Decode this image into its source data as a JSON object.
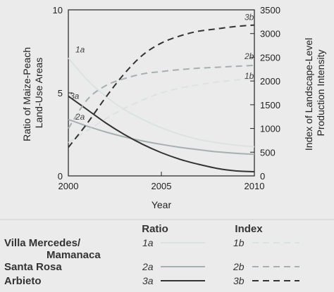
{
  "chart_data": {
    "type": "line",
    "x_axis": {
      "label": "Year",
      "range": [
        2000,
        2010
      ],
      "ticks": [
        "2000",
        "2005",
        "2010"
      ]
    },
    "y_left": {
      "label_lines": [
        "Ratio of Maize-Peach",
        "Land-Use Areas"
      ],
      "range": [
        0,
        10
      ],
      "ticks": [
        "0",
        "5",
        "10"
      ]
    },
    "y_right": {
      "label_lines": [
        "Index of Landscape-Level",
        "Production Intensity"
      ],
      "range": [
        0,
        3500
      ],
      "ticks": [
        "0",
        "500",
        "1000",
        "1500",
        "2000",
        "2500",
        "3000",
        "3500"
      ]
    },
    "series": [
      {
        "id": "1a",
        "label": "1a",
        "axis": "left",
        "style": "solid",
        "color": "#dbe2e2",
        "x": [
          2000,
          2001,
          2002,
          2003,
          2004,
          2005,
          2006,
          2007,
          2008,
          2009,
          2010
        ],
        "y": [
          7.1,
          5.8,
          4.8,
          4.0,
          3.4,
          2.9,
          2.5,
          2.2,
          2.0,
          1.85,
          1.75
        ]
      },
      {
        "id": "2a",
        "label": "2a",
        "axis": "left",
        "style": "solid",
        "color": "#a7b0b0",
        "x": [
          2000,
          2001,
          2002,
          2003,
          2004,
          2005,
          2006,
          2007,
          2008,
          2009,
          2010
        ],
        "y": [
          3.4,
          3.0,
          2.65,
          2.35,
          2.1,
          1.9,
          1.72,
          1.58,
          1.45,
          1.36,
          1.3
        ]
      },
      {
        "id": "3a",
        "label": "3a",
        "axis": "left",
        "style": "solid",
        "color": "#333333",
        "x": [
          2000,
          2001,
          2002,
          2003,
          2004,
          2005,
          2006,
          2007,
          2008,
          2009,
          2010
        ],
        "y": [
          4.8,
          4.0,
          3.2,
          2.5,
          1.9,
          1.4,
          1.0,
          0.7,
          0.45,
          0.3,
          0.25
        ]
      },
      {
        "id": "1b",
        "label": "1b",
        "axis": "right",
        "style": "dashed",
        "color": "#dbe2e2",
        "x": [
          2000,
          2001,
          2002,
          2003,
          2004,
          2005,
          2006,
          2007,
          2008,
          2009,
          2010
        ],
        "y": [
          700,
          950,
          1200,
          1420,
          1600,
          1750,
          1850,
          1920,
          1980,
          2020,
          2050
        ]
      },
      {
        "id": "2b",
        "label": "2b",
        "axis": "right",
        "style": "dashed",
        "color": "#a7b0b0",
        "x": [
          2000,
          2001,
          2002,
          2003,
          2004,
          2005,
          2006,
          2007,
          2008,
          2009,
          2010
        ],
        "y": [
          1000,
          1600,
          1900,
          2050,
          2150,
          2200,
          2240,
          2270,
          2290,
          2310,
          2330
        ]
      },
      {
        "id": "3b",
        "label": "3b",
        "axis": "right",
        "style": "dashed",
        "color": "#333333",
        "x": [
          2000,
          2001,
          2002,
          2003,
          2004,
          2005,
          2006,
          2007,
          2008,
          2009,
          2010
        ],
        "y": [
          600,
          1100,
          1650,
          2150,
          2550,
          2800,
          2950,
          3050,
          3100,
          3150,
          3180
        ]
      }
    ],
    "legend": {
      "position": "bottom",
      "column_headers": {
        "ratio": "Ratio",
        "index": "Index"
      },
      "rows": [
        {
          "site_lines": [
            "Villa Mercedes/",
            "Mamanaca"
          ],
          "ratio_code": "1a",
          "index_code": "1b",
          "color": "#dbe2e2"
        },
        {
          "site_lines": [
            "Santa Rosa"
          ],
          "ratio_code": "2a",
          "index_code": "2b",
          "color": "#a7b0b0"
        },
        {
          "site_lines": [
            "Arbieto"
          ],
          "ratio_code": "3a",
          "index_code": "3b",
          "color": "#333333"
        }
      ]
    }
  }
}
